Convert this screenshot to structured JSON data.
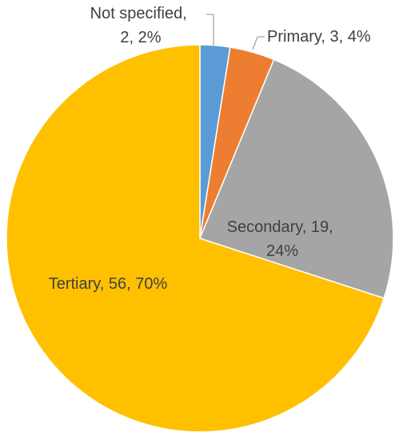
{
  "chart_data": {
    "type": "pie",
    "title": "",
    "slices": [
      {
        "name": "Not specified",
        "value": 2,
        "percent": "2%",
        "color": "#5b9bd5",
        "label_lines": [
          "Not specified,",
          "2, 2%"
        ]
      },
      {
        "name": "Primary",
        "value": 3,
        "percent": "4%",
        "color": "#ed7d31",
        "label_lines": [
          "Primary, 3, 4%"
        ]
      },
      {
        "name": "Secondary",
        "value": 19,
        "percent": "24%",
        "color": "#a5a5a5",
        "label_lines": [
          "Secondary, 19,",
          "24%"
        ]
      },
      {
        "name": "Tertiary",
        "value": 56,
        "percent": "70%",
        "color": "#ffc000",
        "label_lines": [
          "Tertiary, 56, 70%"
        ]
      }
    ],
    "legend": "none",
    "data_labels": "category, value, percentage"
  }
}
